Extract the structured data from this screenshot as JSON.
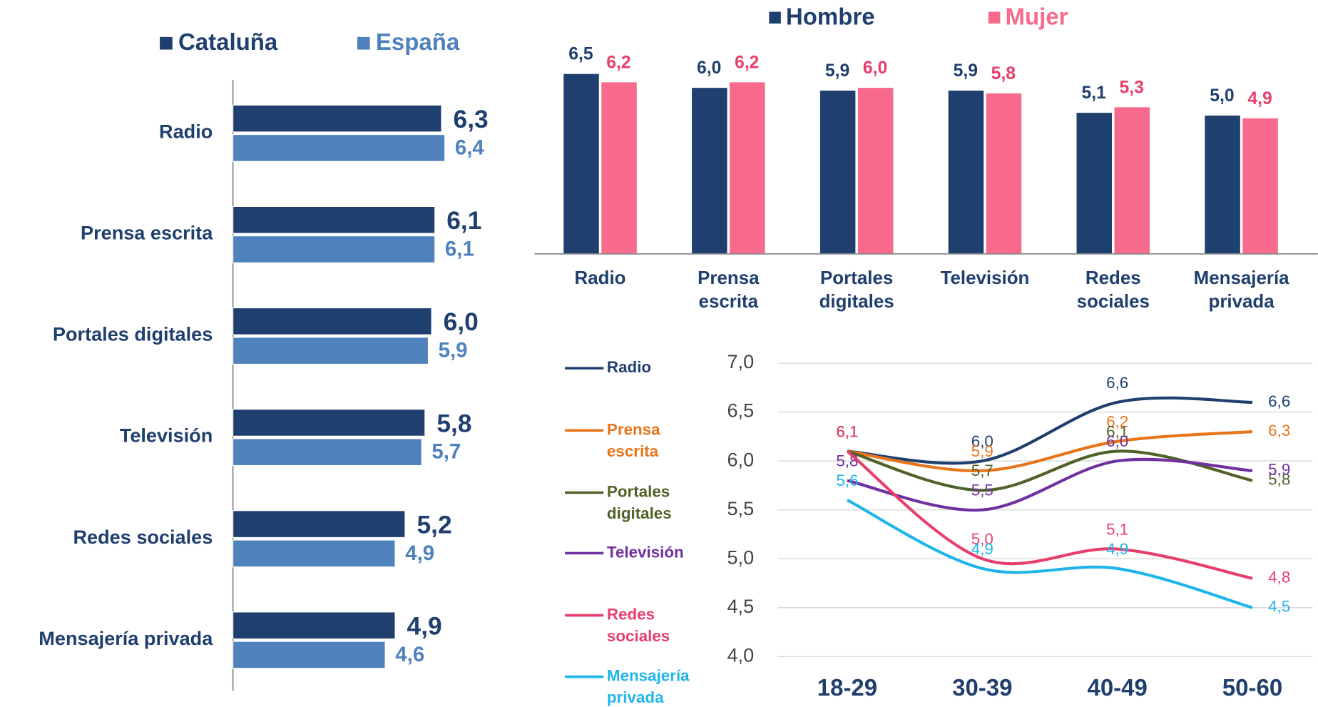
{
  "chart_data": [
    {
      "type": "hbar",
      "categories": [
        "Radio",
        "Prensa escrita",
        "Portales digitales",
        "Televisión",
        "Redes sociales",
        "Mensajería privada"
      ],
      "series": [
        {
          "name": "Cataluña",
          "color": "#1f3f6e",
          "values": [
            6.3,
            6.1,
            6.0,
            5.8,
            5.2,
            4.9
          ],
          "value_labels": [
            "6,3",
            "6,1",
            "6,0",
            "5,8",
            "5,2",
            "4,9"
          ]
        },
        {
          "name": "España",
          "color": "#4f81bd",
          "values": [
            6.4,
            6.1,
            5.9,
            5.7,
            4.9,
            4.6
          ],
          "value_labels": [
            "6,4",
            "6,1",
            "5,9",
            "5,7",
            "4,9",
            "4,6"
          ]
        }
      ]
    },
    {
      "type": "bar",
      "categories": [
        "Radio",
        "Prensa escrita",
        "Portales digitales",
        "Televisión",
        "Redes sociales",
        "Mensajería privada"
      ],
      "series": [
        {
          "name": "Hombre",
          "color": "#1f3f6e",
          "values": [
            6.5,
            6.0,
            5.9,
            5.9,
            5.1,
            5.0
          ],
          "value_labels": [
            "6,5",
            "6,0",
            "5,9",
            "5,9",
            "5,1",
            "5,0"
          ]
        },
        {
          "name": "Mujer",
          "color": "#f76a8c",
          "values": [
            6.2,
            6.2,
            6.0,
            5.8,
            5.3,
            4.9
          ],
          "value_labels": [
            "6,2",
            "6,2",
            "6,0",
            "5,8",
            "5,3",
            "4,9"
          ]
        }
      ]
    },
    {
      "type": "line",
      "categories": [
        "18-29",
        "30-39",
        "40-49",
        "50-60"
      ],
      "ylim": [
        4.0,
        7.0
      ],
      "yticks": [
        {
          "value": 4.0,
          "label": "4,0"
        },
        {
          "value": 4.5,
          "label": "4,5"
        },
        {
          "value": 5.0,
          "label": "5,0"
        },
        {
          "value": 5.5,
          "label": "5,5"
        },
        {
          "value": 6.0,
          "label": "6,0"
        },
        {
          "value": 6.5,
          "label": "6,5"
        },
        {
          "value": 7.0,
          "label": "7,0"
        }
      ],
      "grid": true,
      "series": [
        {
          "name": "Radio",
          "color": "#1f3f6e",
          "values": [
            6.1,
            6.0,
            6.6,
            6.6
          ],
          "value_labels": [
            "6,1",
            "6,0",
            "6,6",
            "6,6"
          ]
        },
        {
          "name": "Prensa escrita",
          "color": "#e8751a",
          "values": [
            6.1,
            5.9,
            6.2,
            6.3
          ],
          "value_labels": [
            "6,1",
            "5,9",
            "6,2",
            "6,3"
          ]
        },
        {
          "name": "Portales digitales",
          "color": "#4f6228",
          "values": [
            6.1,
            5.7,
            6.1,
            5.8
          ],
          "value_labels": [
            "6,1",
            "5,7",
            "6,1",
            "5,8"
          ]
        },
        {
          "name": "Televisión",
          "color": "#7030a0",
          "values": [
            5.8,
            5.5,
            6.0,
            5.9
          ],
          "value_labels": [
            "5,8",
            "5,5",
            "6,0",
            "5,9"
          ]
        },
        {
          "name": "Redes sociales",
          "color": "#e83e6c",
          "values": [
            6.1,
            5.0,
            5.1,
            4.8
          ],
          "value_labels": [
            "6,1",
            "5,0",
            "5,1",
            "4,8"
          ]
        },
        {
          "name": "Mensajería privada",
          "color": "#1fb5ea",
          "values": [
            5.6,
            4.9,
            4.9,
            4.5
          ],
          "value_labels": [
            "5,6",
            "4,9",
            "4,9",
            "4,5"
          ]
        }
      ]
    }
  ]
}
